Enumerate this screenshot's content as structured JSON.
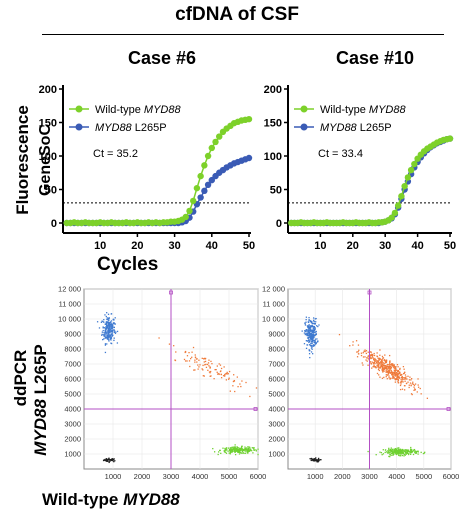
{
  "figure": {
    "title": "cfDNA of CSF",
    "qpcr_ylabel_line1": "GeneSoC",
    "qpcr_ylabel_line2": "Fluorescence",
    "qpcr_xlabel": "Cycles",
    "ddpcr_ylabel_line1": "ddPCR",
    "ddpcr_ylabel_gene": "MYD88",
    "ddpcr_ylabel_mut": " L265P",
    "ddpcr_xlabel_prefix": "Wild-type ",
    "ddpcr_xlabel_gene": "MYD88"
  },
  "colors": {
    "wildtype": "#7dd12a",
    "mutant": "#3a5bb5",
    "ddpcr_line": "#b34fc4",
    "cluster_neg": "#1f1f1f",
    "cluster_mut": "#3f7ad0",
    "cluster_wt": "#6fd131",
    "cluster_double": "#ef7a3a"
  },
  "chart_data": [
    {
      "type": "line",
      "title": "Case #6",
      "xlabel": "Cycles",
      "ylabel": "GeneSoC Fluorescence",
      "xlim": [
        0,
        50
      ],
      "ylim": [
        0,
        200
      ],
      "xticks": [
        10,
        20,
        30,
        40,
        50
      ],
      "yticks": [
        0,
        50,
        100,
        150,
        200
      ],
      "threshold": 30,
      "annotation": "Ct = 35.2",
      "legend_position": "top-left",
      "legend": [
        {
          "prefix": "Wild-type ",
          "gene": "MYD88",
          "suffix": ""
        },
        {
          "prefix": "",
          "gene": "MYD88",
          "suffix": " L265P"
        }
      ],
      "cycles": [
        1,
        2,
        3,
        4,
        5,
        6,
        7,
        8,
        9,
        10,
        11,
        12,
        13,
        14,
        15,
        16,
        17,
        18,
        19,
        20,
        21,
        22,
        23,
        24,
        25,
        26,
        27,
        28,
        29,
        30,
        31,
        32,
        33,
        34,
        35,
        36,
        37,
        38,
        39,
        40,
        41,
        42,
        43,
        44,
        45,
        46,
        47,
        48,
        49,
        50
      ],
      "series": [
        {
          "name": "Wild-type MYD88",
          "values": [
            0,
            0,
            1,
            0,
            0,
            1,
            0,
            0,
            0,
            1,
            0,
            0,
            1,
            0,
            0,
            0,
            1,
            0,
            0,
            1,
            0,
            0,
            1,
            0,
            1,
            0,
            1,
            1,
            2,
            2,
            3,
            5,
            9,
            18,
            33,
            52,
            70,
            86,
            100,
            112,
            121,
            129,
            136,
            141,
            145,
            149,
            151,
            153,
            154,
            155
          ]
        },
        {
          "name": "MYD88 L265P",
          "values": [
            0,
            0,
            0,
            0,
            0,
            0,
            0,
            0,
            0,
            0,
            0,
            0,
            0,
            0,
            0,
            0,
            0,
            0,
            0,
            0,
            0,
            0,
            0,
            0,
            0,
            0,
            0,
            0,
            0,
            0,
            0,
            1,
            3,
            8,
            17,
            28,
            38,
            48,
            57,
            64,
            70,
            75,
            79,
            83,
            86,
            89,
            91,
            93,
            95,
            97
          ]
        }
      ]
    },
    {
      "type": "line",
      "title": "Case #10",
      "xlabel": "Cycles",
      "ylabel": "GeneSoC Fluorescence",
      "xlim": [
        0,
        50
      ],
      "ylim": [
        0,
        200
      ],
      "xticks": [
        10,
        20,
        30,
        40,
        50
      ],
      "yticks": [
        0,
        50,
        100,
        150,
        200
      ],
      "threshold": 30,
      "annotation": "Ct = 33.4",
      "legend_position": "top-left",
      "legend": [
        {
          "prefix": "Wild-type ",
          "gene": "MYD88",
          "suffix": ""
        },
        {
          "prefix": "",
          "gene": "MYD88",
          "suffix": " L265P"
        }
      ],
      "cycles": [
        1,
        2,
        3,
        4,
        5,
        6,
        7,
        8,
        9,
        10,
        11,
        12,
        13,
        14,
        15,
        16,
        17,
        18,
        19,
        20,
        21,
        22,
        23,
        24,
        25,
        26,
        27,
        28,
        29,
        30,
        31,
        32,
        33,
        34,
        35,
        36,
        37,
        38,
        39,
        40,
        41,
        42,
        43,
        44,
        45,
        46,
        47,
        48,
        49,
        50
      ],
      "series": [
        {
          "name": "Wild-type MYD88",
          "values": [
            0,
            0,
            0,
            1,
            0,
            0,
            0,
            1,
            0,
            0,
            0,
            1,
            0,
            0,
            0,
            0,
            1,
            0,
            0,
            0,
            1,
            0,
            0,
            0,
            1,
            0,
            0,
            1,
            1,
            2,
            4,
            8,
            15,
            26,
            40,
            55,
            68,
            79,
            88,
            96,
            102,
            107,
            111,
            114,
            117,
            120,
            122,
            124,
            125,
            126
          ]
        },
        {
          "name": "MYD88 L265P",
          "values": [
            0,
            0,
            0,
            0,
            0,
            0,
            0,
            0,
            0,
            0,
            0,
            0,
            0,
            0,
            0,
            0,
            0,
            0,
            0,
            0,
            0,
            0,
            0,
            0,
            0,
            0,
            0,
            0,
            1,
            2,
            4,
            7,
            13,
            23,
            36,
            50,
            62,
            73,
            83,
            91,
            98,
            104,
            109,
            113,
            116,
            119,
            121,
            123,
            125,
            126
          ]
        }
      ]
    },
    {
      "type": "scatter",
      "title": "",
      "xlim": [
        0,
        6000
      ],
      "ylim": [
        0,
        12000
      ],
      "xticks": [
        1000,
        2000,
        3000,
        4000,
        5000,
        6000
      ],
      "yticks": [
        1000,
        2000,
        3000,
        4000,
        5000,
        6000,
        7000,
        8000,
        9000,
        10000,
        11000,
        12000
      ],
      "ytick_labels": [
        "1000",
        "2000",
        "3000",
        "4000",
        "5000",
        "6000",
        "7000",
        "8000",
        "9000",
        "10 000",
        "11 000",
        "12 000"
      ],
      "threshold_x": 3000,
      "threshold_y": 4000,
      "clusters": [
        {
          "name": "negative",
          "center": [
            900,
            600
          ],
          "spread": [
            110,
            60
          ],
          "count": 40
        },
        {
          "name": "MYD88 L265P positive",
          "center": [
            850,
            9300
          ],
          "spread": [
            110,
            450
          ],
          "count": 230
        },
        {
          "name": "wild-type positive",
          "center": [
            5350,
            1250
          ],
          "spread": [
            320,
            110
          ],
          "count": 200
        },
        {
          "name": "double positive",
          "center": [
            4300,
            6800
          ],
          "spread": [
            650,
            750
          ],
          "count": 110
        }
      ]
    },
    {
      "type": "scatter",
      "title": "",
      "xlim": [
        0,
        6000
      ],
      "ylim": [
        0,
        12000
      ],
      "xticks": [
        1000,
        2000,
        3000,
        4000,
        5000,
        6000
      ],
      "yticks": [
        1000,
        2000,
        3000,
        4000,
        5000,
        6000,
        7000,
        8000,
        9000,
        10000,
        11000,
        12000
      ],
      "ytick_labels": [
        "1000",
        "2000",
        "3000",
        "4000",
        "5000",
        "6000",
        "7000",
        "8000",
        "9000",
        "10 000",
        "11 000",
        "12 000"
      ],
      "threshold_x": 3000,
      "threshold_y": 4000,
      "clusters": [
        {
          "name": "negative",
          "center": [
            950,
            600
          ],
          "spread": [
            110,
            60
          ],
          "count": 40
        },
        {
          "name": "MYD88 L265P positive",
          "center": [
            850,
            9000
          ],
          "spread": [
            110,
            500
          ],
          "count": 250
        },
        {
          "name": "wild-type positive",
          "center": [
            4150,
            1150
          ],
          "spread": [
            320,
            110
          ],
          "count": 220
        },
        {
          "name": "double positive",
          "center": [
            3650,
            6700
          ],
          "spread": [
            500,
            650
          ],
          "count": 420
        }
      ]
    }
  ]
}
